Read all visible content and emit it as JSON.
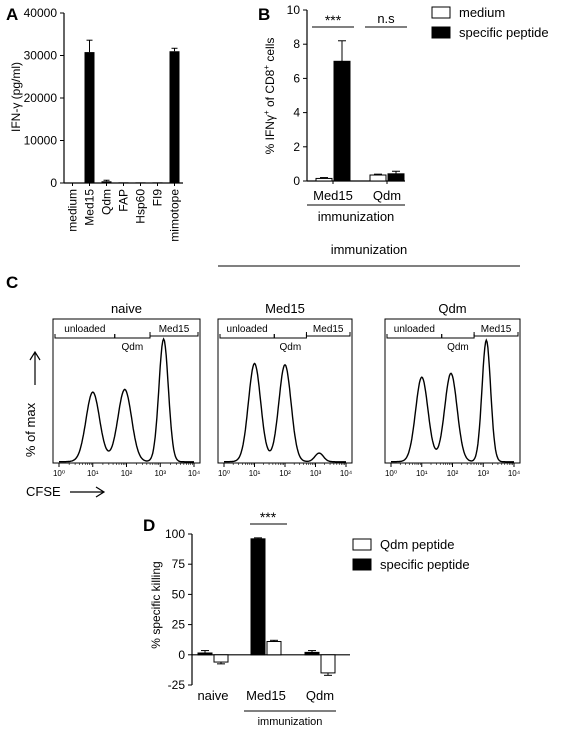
{
  "panel_labels": {
    "a": "A",
    "b": "B",
    "c": "C",
    "d": "D"
  },
  "chart_data": [
    {
      "panel": "A",
      "type": "bar",
      "ylabel": "IFN-γ (pg/ml)",
      "ylim": [
        0,
        40000
      ],
      "yticks": [
        "0",
        "10000",
        "20000",
        "30000",
        "40000"
      ],
      "categories": [
        "medium",
        "Med15",
        "Qdm",
        "FAP",
        "Hsp60",
        "FI9",
        "mimotope"
      ],
      "values": [
        100,
        30800,
        400,
        150,
        150,
        150,
        31000
      ],
      "errors": [
        0,
        2800,
        250,
        0,
        0,
        0,
        700
      ],
      "bar_color": "#000000"
    },
    {
      "panel": "B",
      "type": "bar",
      "ylabel": "% IFNγ+ of CD8+ cells",
      "ylabel_parts": {
        "pre": "% IFNγ",
        "sup1": "+",
        "mid": " of CD8",
        "sup2": "+",
        "post": " cells"
      },
      "ylim": [
        0,
        10
      ],
      "yticks": [
        "0",
        "2",
        "4",
        "6",
        "8",
        "10"
      ],
      "categories": [
        "Med15",
        "Qdm"
      ],
      "group_label": "immunization",
      "series": [
        {
          "name": "medium",
          "values": [
            0.15,
            0.35
          ],
          "errors": [
            0.05,
            0.05
          ],
          "fill": "#ffffff"
        },
        {
          "name": "specific peptide",
          "values": [
            7.0,
            0.42
          ],
          "errors": [
            1.2,
            0.15
          ],
          "fill": "#000000"
        }
      ],
      "annotations": [
        "***",
        "n.s"
      ]
    },
    {
      "panel": "C",
      "type": "histogram",
      "header": "immunization",
      "xlabel": "CFSE",
      "ylabel": "% of max",
      "xticks": [
        "10⁰",
        "10¹",
        "10²",
        "10³",
        "10⁴"
      ],
      "gates": [
        "unloaded",
        "Qdm",
        "Med15"
      ],
      "subplots": [
        {
          "title": "naive",
          "peaks": [
            {
              "x": 1.0,
              "h": 0.55
            },
            {
              "x": 1.95,
              "h": 0.57
            },
            {
              "x": 3.1,
              "h": 0.99
            }
          ]
        },
        {
          "title": "Med15",
          "peaks": [
            {
              "x": 1.0,
              "h": 0.78
            },
            {
              "x": 2.0,
              "h": 0.77
            },
            {
              "x": 3.12,
              "h": 0.07
            }
          ]
        },
        {
          "title": "Qdm",
          "peaks": [
            {
              "x": 1.0,
              "h": 0.67
            },
            {
              "x": 1.95,
              "h": 0.7
            },
            {
              "x": 3.1,
              "h": 0.98
            }
          ]
        }
      ]
    },
    {
      "panel": "D",
      "type": "bar",
      "ylabel": "% specific killing",
      "ylim": [
        -25,
        100
      ],
      "yticks": [
        "-25",
        "0",
        "25",
        "50",
        "75",
        "100"
      ],
      "categories": [
        "naive",
        "Med15",
        "Qdm"
      ],
      "group_label": "immunization",
      "series": [
        {
          "name": "specific peptide",
          "values": [
            1.5,
            96,
            2
          ],
          "errors": [
            2,
            0.8,
            1.5
          ],
          "fill": "#000000"
        },
        {
          "name": "Qdm peptide",
          "values": [
            -6,
            11,
            -15
          ],
          "errors": [
            1.5,
            1,
            2
          ],
          "fill": "#ffffff"
        }
      ],
      "legend_order": [
        "Qdm peptide",
        "specific peptide"
      ],
      "annotations": [
        "***"
      ]
    }
  ]
}
